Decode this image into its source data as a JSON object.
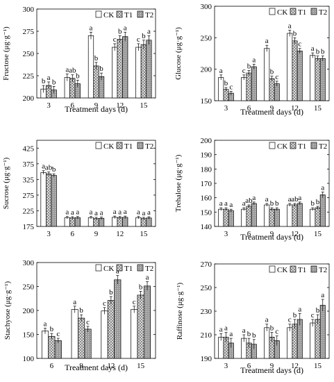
{
  "figure": {
    "legend_labels": [
      "CK",
      "T1",
      "T2"
    ],
    "xlabel": "Treatment days (d)"
  },
  "colors": {
    "CK": "#ffffff",
    "T1": "#dcdcdc",
    "T2": "#a6a6a6",
    "axis": "#000000"
  },
  "chart_data": [
    {
      "type": "bar",
      "ylabel": "Fructose (μg·g⁻¹)",
      "xlabel": "Treatment days (d)",
      "categories": [
        "3",
        "6",
        "9",
        "12",
        "15"
      ],
      "ylim": [
        200,
        300
      ],
      "yticks": [
        200,
        225,
        250,
        275,
        300
      ],
      "legend": "top-right",
      "series": [
        {
          "name": "CK",
          "values": [
            210,
            223,
            270,
            257,
            257
          ],
          "errors": [
            4,
            4,
            4,
            4,
            4
          ],
          "labels": [
            "b",
            "a",
            "a",
            "c",
            "c"
          ]
        },
        {
          "name": "T1",
          "values": [
            214,
            222,
            236,
            266,
            260
          ],
          "errors": [
            4,
            4,
            4,
            4,
            5
          ],
          "labels": [
            "a",
            "ab",
            "b",
            "b",
            "b"
          ]
        },
        {
          "name": "T2",
          "values": [
            209,
            216,
            224,
            269,
            265
          ],
          "errors": [
            4,
            4,
            4,
            5,
            5
          ],
          "labels": [
            "b",
            "b",
            "b",
            "a",
            "a"
          ]
        }
      ]
    },
    {
      "type": "bar",
      "ylabel": "Glucose (μg·g⁻¹)",
      "xlabel": "Treatment days (d)",
      "categories": [
        "3",
        "6",
        "9",
        "12",
        "15"
      ],
      "ylim": [
        150,
        300
      ],
      "yticks": [
        150,
        200,
        250,
        300
      ],
      "legend": "top-right",
      "series": [
        {
          "name": "CK",
          "values": [
            187,
            187,
            233,
            257,
            222
          ],
          "errors": [
            4,
            4,
            5,
            5,
            4
          ],
          "labels": [
            "a",
            "c",
            "a",
            "a",
            "a"
          ]
        },
        {
          "name": "T1",
          "values": [
            168,
            194,
            185,
            245,
            217
          ],
          "errors": [
            3,
            4,
            4,
            5,
            4
          ],
          "labels": [
            "b",
            "b",
            "b",
            "b",
            "b"
          ]
        },
        {
          "name": "T2",
          "values": [
            162,
            204,
            177,
            229,
            217
          ],
          "errors": [
            3,
            4,
            4,
            4,
            4
          ],
          "labels": [
            "c",
            "a",
            "c",
            "c",
            "b"
          ]
        }
      ]
    },
    {
      "type": "bar",
      "ylabel": "Sucrose (μg·g⁻¹)",
      "xlabel": "",
      "categories": [
        "3",
        "6",
        "9",
        "12",
        "15"
      ],
      "ylim": [
        175,
        450
      ],
      "yticks": [
        175,
        225,
        275,
        325,
        375,
        425
      ],
      "legend": "top-right",
      "series": [
        {
          "name": "CK",
          "values": [
            347,
            203,
            203,
            204,
            203
          ],
          "errors": [
            6,
            4,
            4,
            4,
            4
          ],
          "labels": [
            "a",
            "a",
            "a",
            "a",
            "a"
          ]
        },
        {
          "name": "T1",
          "values": [
            343,
            202,
            200,
            203,
            200
          ],
          "errors": [
            6,
            4,
            4,
            4,
            4
          ],
          "labels": [
            "ab",
            "a",
            "a",
            "a",
            "a"
          ]
        },
        {
          "name": "T2",
          "values": [
            338,
            203,
            201,
            204,
            202
          ],
          "errors": [
            5,
            4,
            4,
            4,
            4
          ],
          "labels": [
            "b",
            "a",
            "a",
            "a",
            "a"
          ]
        }
      ]
    },
    {
      "type": "bar",
      "ylabel": "Trehalose (μg·g⁻¹)",
      "xlabel": "Treatment days (d)",
      "categories": [
        "3",
        "6",
        "9",
        "12",
        "15"
      ],
      "ylim": [
        140,
        200
      ],
      "yticks": [
        140,
        150,
        160,
        170,
        180,
        190,
        200
      ],
      "legend": "top-right",
      "series": [
        {
          "name": "CK",
          "values": [
            152,
            152,
            155,
            155,
            152
          ],
          "errors": [
            1,
            1,
            1,
            1,
            1
          ],
          "labels": [
            "a",
            "a",
            "a",
            "a",
            "b"
          ]
        },
        {
          "name": "T1",
          "values": [
            152,
            154,
            152,
            155,
            153
          ],
          "errors": [
            1,
            1,
            1,
            1,
            1
          ],
          "labels": [
            "a",
            "ab",
            "b",
            "ab",
            "b"
          ]
        },
        {
          "name": "T2",
          "values": [
            151,
            156,
            152,
            156,
            162
          ],
          "errors": [
            1,
            1,
            1,
            1,
            2
          ],
          "labels": [
            "a",
            "a",
            "b",
            "a",
            "a"
          ]
        }
      ]
    },
    {
      "type": "bar",
      "ylabel": "Stachyose (μg·g⁻¹)",
      "xlabel": "Treatment days (d)",
      "categories": [
        "6",
        "9",
        "12",
        "15"
      ],
      "ylim": [
        100,
        300
      ],
      "yticks": [
        100,
        150,
        200,
        250,
        300
      ],
      "legend": "top-right",
      "series": [
        {
          "name": "CK",
          "values": [
            157,
            202,
            199,
            202
          ],
          "errors": [
            6,
            7,
            7,
            7
          ],
          "labels": [
            "a",
            "a",
            "c",
            "c"
          ]
        },
        {
          "name": "T1",
          "values": [
            146,
            184,
            221,
            232
          ],
          "errors": [
            6,
            7,
            8,
            8
          ],
          "labels": [
            "b",
            "b",
            "b",
            "b"
          ]
        },
        {
          "name": "T2",
          "values": [
            137,
            161,
            264,
            251
          ],
          "errors": [
            5,
            6,
            9,
            9
          ],
          "labels": [
            "c",
            "c",
            "a",
            "a"
          ]
        }
      ]
    },
    {
      "type": "bar",
      "ylabel": "Raffinose (μg·g⁻¹)",
      "xlabel": "Treatment days (d)",
      "categories": [
        "3",
        "6",
        "9",
        "12",
        "15"
      ],
      "ylim": [
        190,
        270
      ],
      "yticks": [
        190,
        210,
        230,
        250,
        270
      ],
      "legend": "top-right",
      "series": [
        {
          "name": "CK",
          "values": [
            208,
            207,
            216,
            216,
            220
          ],
          "errors": [
            3,
            3,
            3,
            3,
            3
          ],
          "labels": [
            "a",
            "a",
            "a",
            "c",
            "c"
          ]
        },
        {
          "name": "T1",
          "values": [
            208,
            203,
            208,
            219,
            223
          ],
          "errors": [
            4,
            4,
            4,
            4,
            4
          ],
          "labels": [
            "a",
            "b",
            "b",
            "b",
            "b"
          ]
        },
        {
          "name": "T2",
          "values": [
            203,
            202,
            205,
            223,
            235
          ],
          "errors": [
            4,
            4,
            4,
            5,
            5
          ],
          "labels": [
            "a",
            "b",
            "c",
            "a",
            "a"
          ]
        }
      ]
    }
  ]
}
